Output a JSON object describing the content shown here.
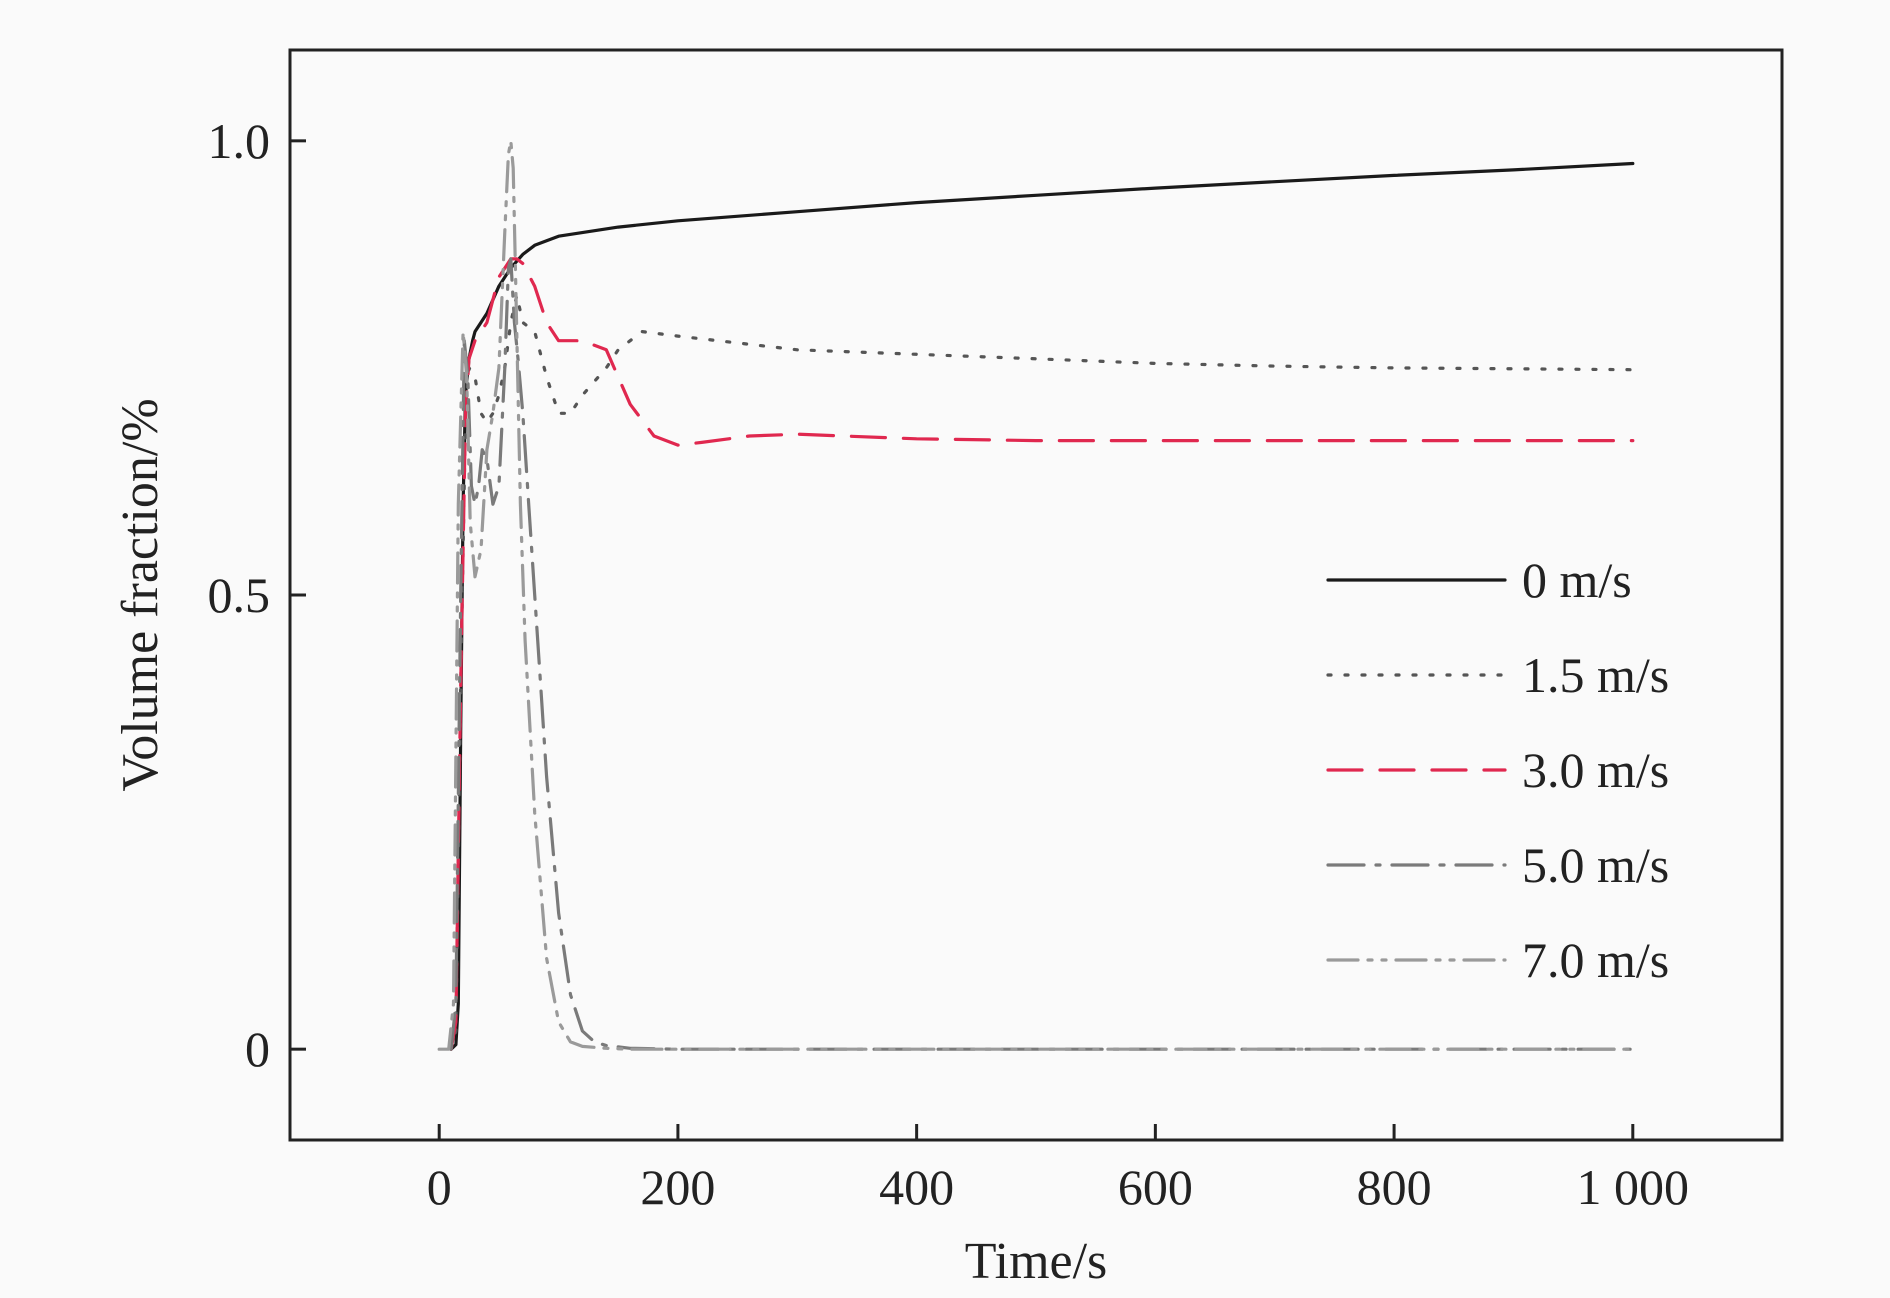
{
  "chart_data": {
    "type": "line",
    "title": "",
    "xlabel": "Time/s",
    "ylabel": "Volume fraction/%",
    "xlim": [
      -125,
      1125
    ],
    "ylim": [
      -0.1,
      1.1
    ],
    "xticks": [
      0,
      200,
      400,
      600,
      800,
      1000
    ],
    "xtick_labels": [
      "0",
      "200",
      "400",
      "600",
      "800",
      "1 000"
    ],
    "yticks": [
      0,
      0.5,
      1.0
    ],
    "ytick_labels": [
      "0",
      "0.5",
      "1.0"
    ],
    "grid": false,
    "legend_position": "right",
    "series": [
      {
        "name": "0 m/s",
        "color": "#1a1a1a",
        "dash": "solid",
        "x": [
          10,
          14,
          16,
          18,
          20,
          22,
          25,
          28,
          30,
          40,
          50,
          60,
          70,
          80,
          90,
          100,
          150,
          200,
          300,
          400,
          500,
          600,
          700,
          800,
          900,
          1000
        ],
        "y": [
          0,
          0.005,
          0.05,
          0.35,
          0.6,
          0.72,
          0.76,
          0.78,
          0.79,
          0.81,
          0.84,
          0.86,
          0.875,
          0.885,
          0.89,
          0.895,
          0.905,
          0.912,
          0.922,
          0.932,
          0.94,
          0.948,
          0.955,
          0.962,
          0.968,
          0.975
        ]
      },
      {
        "name": "1.5 m/s",
        "color": "#555555",
        "dash": "dotted",
        "x": [
          10,
          14,
          18,
          22,
          25,
          30,
          35,
          40,
          45,
          50,
          55,
          60,
          65,
          70,
          80,
          90,
          100,
          110,
          120,
          140,
          150,
          170,
          200,
          300,
          400,
          500,
          600,
          700,
          800,
          900,
          1000
        ],
        "y": [
          0,
          0.02,
          0.4,
          0.7,
          0.75,
          0.74,
          0.7,
          0.69,
          0.7,
          0.72,
          0.75,
          0.8,
          0.83,
          0.8,
          0.79,
          0.74,
          0.7,
          0.7,
          0.72,
          0.75,
          0.77,
          0.79,
          0.785,
          0.77,
          0.765,
          0.76,
          0.755,
          0.752,
          0.75,
          0.749,
          0.748
        ]
      },
      {
        "name": "3.0 m/s",
        "color": "#e0284f",
        "dash": "dashed",
        "x": [
          10,
          14,
          18,
          22,
          25,
          30,
          40,
          50,
          60,
          65,
          70,
          80,
          90,
          100,
          120,
          140,
          150,
          160,
          180,
          200,
          220,
          260,
          300,
          400,
          500,
          600,
          800,
          1000
        ],
        "y": [
          0,
          0.03,
          0.4,
          0.7,
          0.76,
          0.78,
          0.8,
          0.85,
          0.87,
          0.87,
          0.865,
          0.84,
          0.8,
          0.78,
          0.78,
          0.77,
          0.74,
          0.71,
          0.675,
          0.665,
          0.668,
          0.675,
          0.677,
          0.672,
          0.67,
          0.67,
          0.67,
          0.67
        ]
      },
      {
        "name": "5.0 m/s",
        "color": "#7a7a7a",
        "dash": "dashdot",
        "x": [
          10,
          14,
          18,
          21,
          24,
          27,
          30,
          33,
          36,
          40,
          45,
          50,
          55,
          58,
          60,
          63,
          66,
          70,
          75,
          80,
          85,
          90,
          100,
          110,
          120,
          130,
          140,
          160,
          200,
          300,
          400,
          500,
          600,
          800,
          1000
        ],
        "y": [
          0,
          0.05,
          0.5,
          0.78,
          0.74,
          0.62,
          0.6,
          0.62,
          0.66,
          0.65,
          0.6,
          0.62,
          0.75,
          0.86,
          0.87,
          0.8,
          0.76,
          0.7,
          0.6,
          0.5,
          0.4,
          0.3,
          0.15,
          0.06,
          0.02,
          0.008,
          0.004,
          0.001,
          0,
          0,
          0,
          0,
          0,
          0,
          0
        ]
      },
      {
        "name": "7.0 m/s",
        "color": "#9a9a9a",
        "dash": "dashdotdot",
        "x": [
          0,
          8,
          12,
          16,
          20,
          23,
          26,
          30,
          35,
          40,
          45,
          50,
          55,
          58,
          60,
          62,
          64,
          68,
          72,
          80,
          90,
          100,
          110,
          120,
          140,
          160,
          200,
          300,
          400,
          500,
          600,
          800,
          1000
        ],
        "y": [
          0,
          0,
          0.05,
          0.6,
          0.79,
          0.74,
          0.58,
          0.52,
          0.55,
          0.66,
          0.7,
          0.75,
          0.9,
          0.985,
          1.0,
          0.97,
          0.85,
          0.6,
          0.45,
          0.26,
          0.1,
          0.03,
          0.008,
          0.003,
          0.001,
          0,
          0,
          0,
          0,
          0,
          0,
          0,
          0
        ]
      }
    ]
  }
}
